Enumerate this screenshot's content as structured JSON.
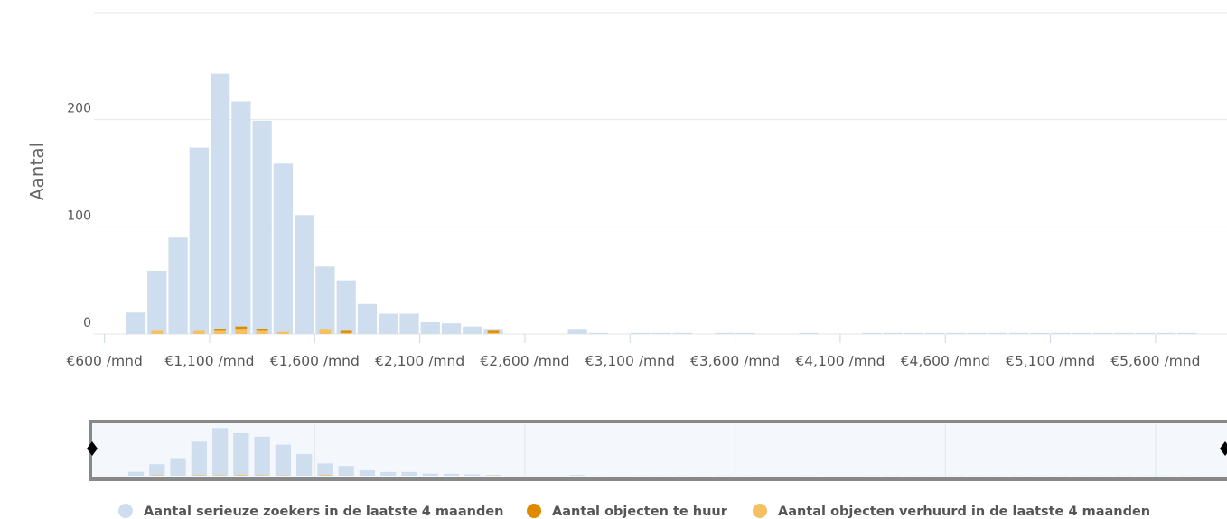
{
  "chart_data": {
    "type": "histogram",
    "y_label": "Aantal",
    "bins": [
      700,
      800,
      900,
      1000,
      1100,
      1200,
      1300,
      1400,
      1500,
      1600,
      1700,
      1800,
      1900,
      2000,
      2100,
      2200,
      2300,
      2400,
      2500,
      2600,
      2700,
      2800,
      2900,
      3000,
      3100,
      3200,
      3300,
      3400,
      3500,
      3600,
      3700,
      3800,
      3900,
      4000,
      4100,
      4200,
      4300,
      4400,
      4500,
      4600,
      4700,
      4800,
      4900,
      5000,
      5100,
      5200,
      5300,
      5400,
      5500,
      5600,
      5700,
      5800,
      5900
    ],
    "series": [
      {
        "name": "Aantal serieuze zoekers in de laatste 4 maanden",
        "color": "#cfdeee",
        "values": [
          20,
          59,
          90,
          174,
          243,
          217,
          199,
          159,
          111,
          63,
          50,
          28,
          19,
          19,
          11,
          10,
          7,
          4,
          0,
          0,
          0,
          4,
          1,
          0,
          1,
          1,
          1,
          0,
          1,
          1,
          0,
          0,
          1,
          0,
          0,
          1,
          1,
          1,
          1,
          1,
          1,
          1,
          1,
          1,
          1,
          1,
          1,
          1,
          1,
          1,
          1,
          0
        ]
      },
      {
        "name": "Aantal objecten te huur",
        "color": "#e08a00",
        "values": [
          0,
          0,
          0,
          0,
          2,
          3,
          2,
          0,
          0,
          0,
          2,
          0,
          0,
          0,
          0,
          0,
          0,
          2,
          0,
          0,
          0,
          0,
          0,
          0,
          0,
          0,
          0,
          0,
          0,
          0,
          0,
          0,
          0,
          0,
          0,
          0,
          0,
          0,
          0,
          0,
          0,
          0,
          0,
          0,
          0,
          0,
          0,
          0,
          0,
          0,
          0,
          0
        ]
      },
      {
        "name": "Aantal objecten verhuurd in de laatste 4 maanden",
        "color": "#f5c060",
        "values": [
          0,
          3,
          0,
          3,
          3,
          4,
          3,
          2,
          0,
          4,
          1,
          0,
          0,
          0,
          0,
          0,
          0,
          1,
          0,
          0,
          0,
          0,
          0,
          0,
          0,
          0,
          0,
          0,
          0,
          0,
          0,
          0,
          0,
          0,
          0,
          0,
          0,
          0,
          0,
          0,
          0,
          0,
          0,
          0,
          0,
          0,
          0,
          0,
          0,
          0,
          0,
          0
        ]
      }
    ],
    "xlim": [
      550,
      5940
    ],
    "xticks": [
      {
        "value": 600,
        "label": "€600 /mnd"
      },
      {
        "value": 1100,
        "label": "€1,100 /mnd"
      },
      {
        "value": 1600,
        "label": "€1,600 /mnd"
      },
      {
        "value": 2100,
        "label": "€2,100 /mnd"
      },
      {
        "value": 2600,
        "label": "€2,600 /mnd"
      },
      {
        "value": 3100,
        "label": "€3,100 /mnd"
      },
      {
        "value": 3600,
        "label": "€3,600 /mnd"
      },
      {
        "value": 4100,
        "label": "€4,100 /mnd"
      },
      {
        "value": 4600,
        "label": "€4,600 /mnd"
      },
      {
        "value": 5100,
        "label": "€5,100 /mnd"
      },
      {
        "value": 5600,
        "label": "€5,600 /mnd"
      }
    ],
    "ylim": [
      0,
      300
    ],
    "yticks": [
      0,
      100,
      200
    ],
    "grid": true,
    "legend": "bottom"
  }
}
